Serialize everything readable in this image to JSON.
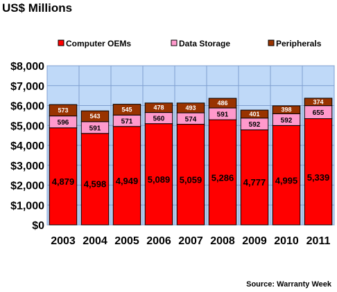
{
  "chart_data": {
    "type": "bar",
    "stacked": true,
    "title": "US$ Millions",
    "categories": [
      "2003",
      "2004",
      "2005",
      "2006",
      "2007",
      "2008",
      "2009",
      "2010",
      "2011"
    ],
    "series": [
      {
        "name": "Computer OEMs",
        "color": "#ff0000",
        "values": [
          4879,
          4598,
          4949,
          5089,
          5059,
          5286,
          4777,
          4995,
          5339
        ],
        "labels": [
          "4,879",
          "4,598",
          "4,949",
          "5,089",
          "5,059",
          "5,286",
          "4,777",
          "4,995",
          "5,339"
        ]
      },
      {
        "name": "Data Storage",
        "color": "#ff99cc",
        "values": [
          596,
          591,
          571,
          560,
          574,
          591,
          592,
          592,
          655
        ],
        "labels": [
          "596",
          "591",
          "571",
          "560",
          "574",
          "591",
          "592",
          "592",
          "655"
        ]
      },
      {
        "name": "Peripherals",
        "color": "#993300",
        "values": [
          573,
          543,
          545,
          478,
          493,
          486,
          401,
          398,
          374
        ],
        "labels": [
          "573",
          "543",
          "545",
          "478",
          "493",
          "486",
          "401",
          "398",
          "374"
        ]
      }
    ],
    "yticks": [
      "$0",
      "$1,000",
      "$2,000",
      "$3,000",
      "$4,000",
      "$5,000",
      "$6,000",
      "$7,000",
      "$8,000"
    ],
    "ylim": [
      0,
      8000
    ],
    "grid": true,
    "legend_position": "top",
    "source": "Source: Warranty Week"
  }
}
